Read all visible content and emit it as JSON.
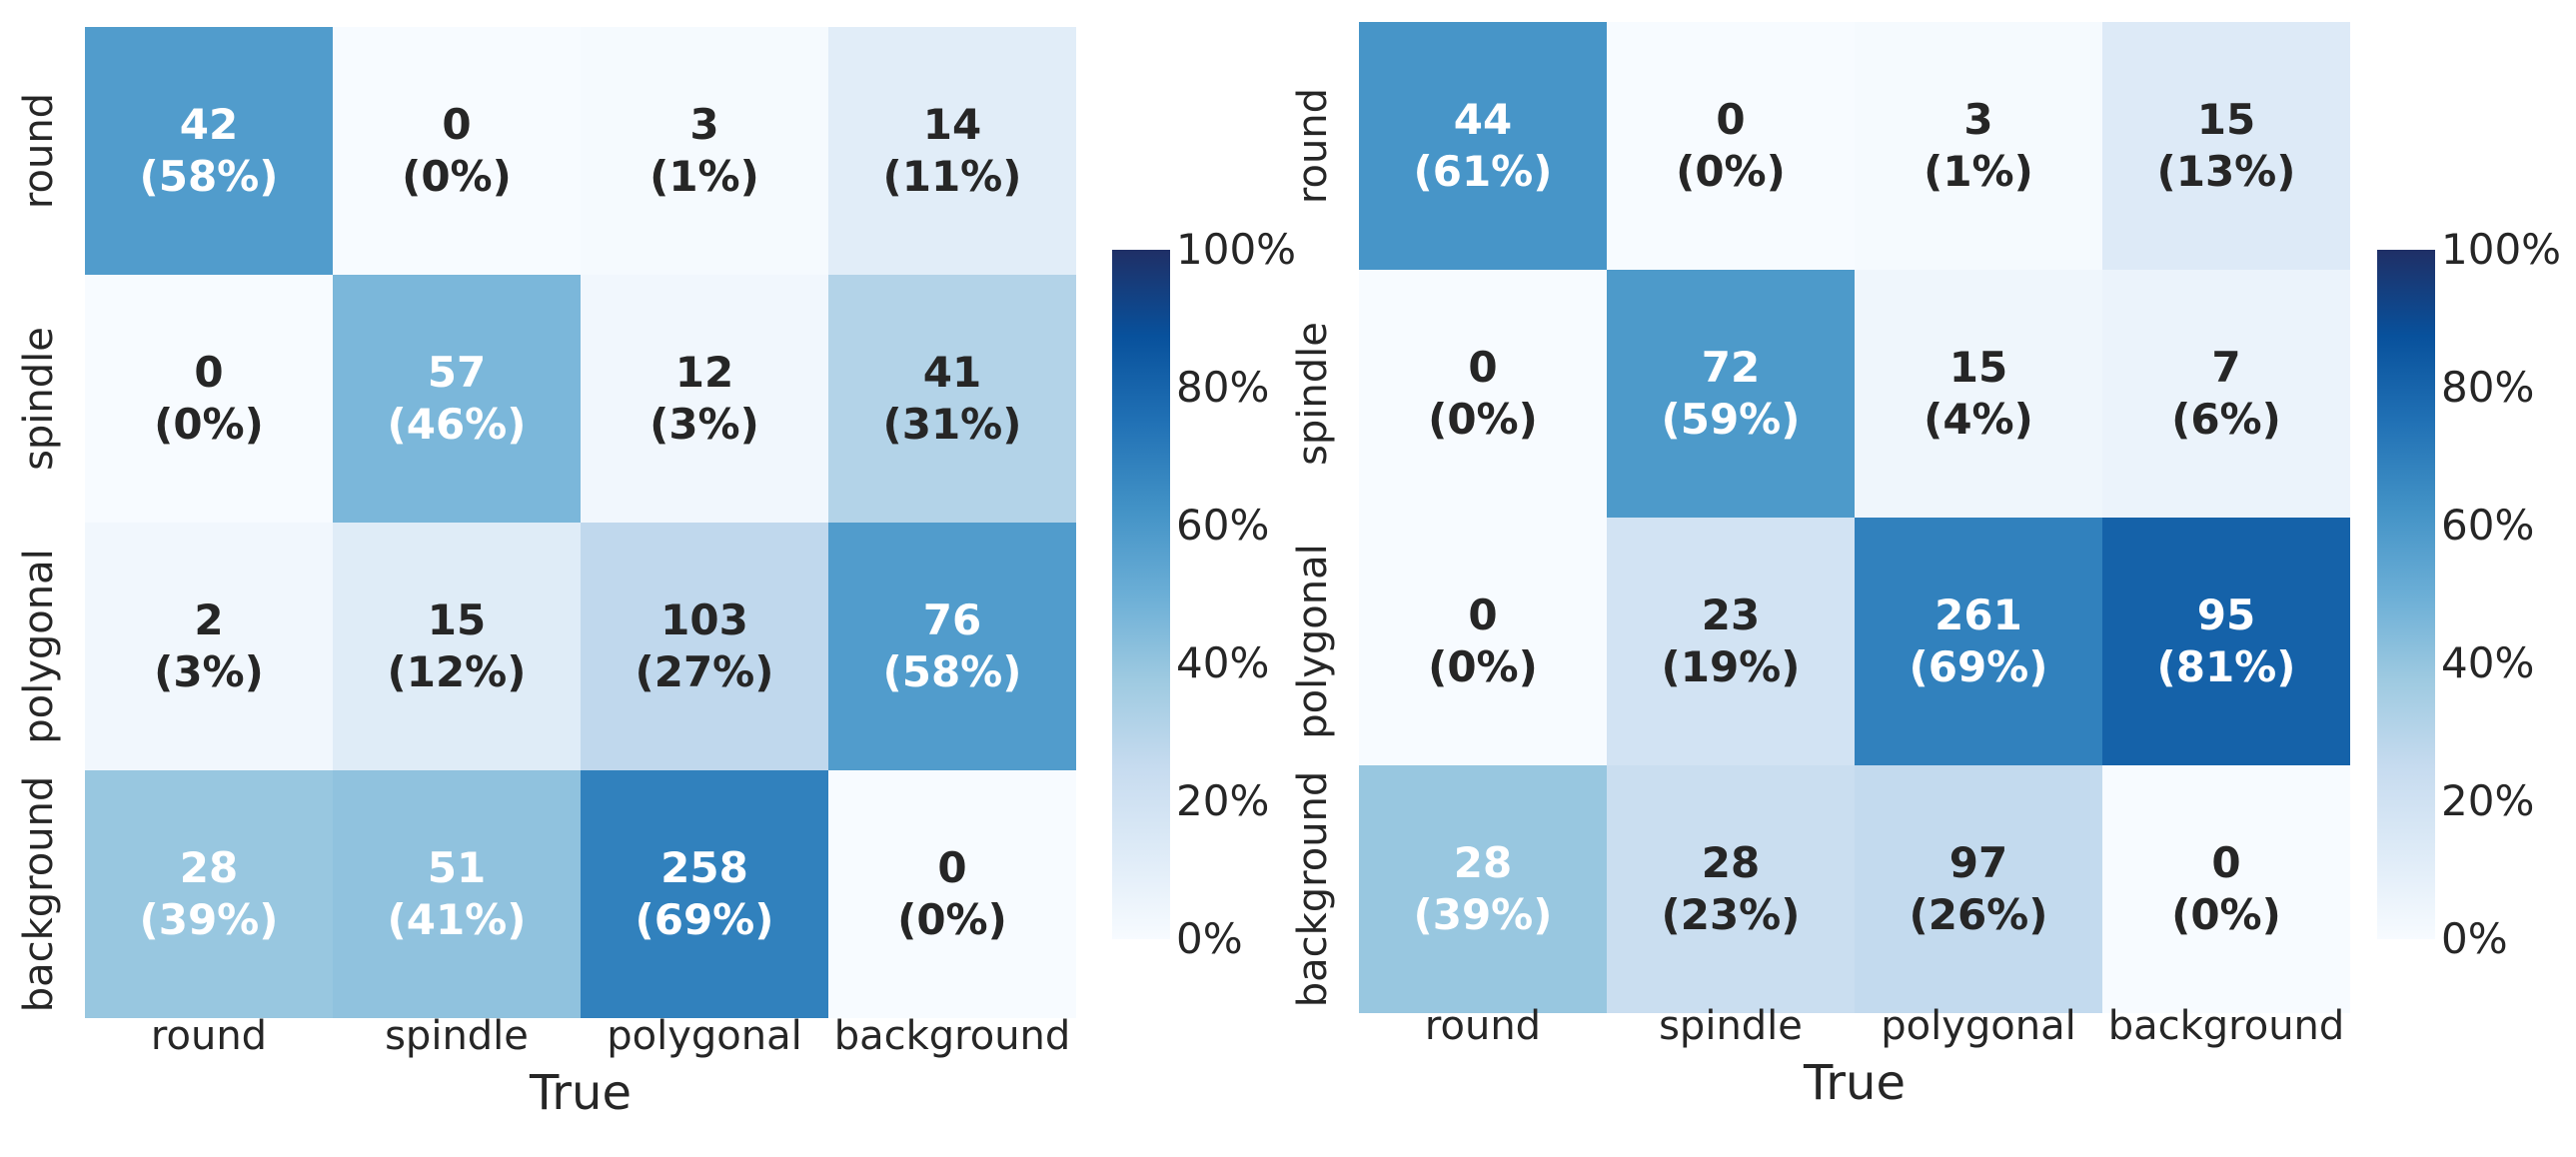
{
  "chart_data": [
    {
      "type": "heatmap",
      "title": "",
      "xlabel": "True",
      "ylabel": "",
      "x_categories": [
        "round",
        "spindle",
        "polygonal",
        "background"
      ],
      "y_categories": [
        "round",
        "spindle",
        "polygonal",
        "background"
      ],
      "counts": [
        [
          42,
          0,
          3,
          14
        ],
        [
          0,
          57,
          12,
          41
        ],
        [
          2,
          15,
          103,
          76
        ],
        [
          28,
          51,
          258,
          0
        ]
      ],
      "percent_labels": [
        [
          "(58%)",
          "(0%)",
          "(1%)",
          "(11%)"
        ],
        [
          "(0%)",
          "(46%)",
          "(3%)",
          "(31%)"
        ],
        [
          "(3%)",
          "(12%)",
          "(27%)",
          "(58%)"
        ],
        [
          "(39%)",
          "(41%)",
          "(69%)",
          "(0%)"
        ]
      ],
      "colorbar_ticks": [
        "0%",
        "20%",
        "40%",
        "60%",
        "80%",
        "100%"
      ],
      "colorbar_range": [
        0,
        100
      ],
      "colormap": "Blues"
    },
    {
      "type": "heatmap",
      "title": "",
      "xlabel": "True",
      "ylabel": "",
      "x_categories": [
        "round",
        "spindle",
        "polygonal",
        "background"
      ],
      "y_categories": [
        "round",
        "spindle",
        "polygonal",
        "background"
      ],
      "counts": [
        [
          44,
          0,
          3,
          15
        ],
        [
          0,
          72,
          15,
          7
        ],
        [
          0,
          23,
          261,
          95
        ],
        [
          28,
          28,
          97,
          0
        ]
      ],
      "percent_labels": [
        [
          "(61%)",
          "(0%)",
          "(1%)",
          "(13%)"
        ],
        [
          "(0%)",
          "(59%)",
          "(4%)",
          "(6%)"
        ],
        [
          "(0%)",
          "(19%)",
          "(69%)",
          "(81%)"
        ],
        [
          "(39%)",
          "(23%)",
          "(26%)",
          "(0%)"
        ]
      ],
      "colorbar_ticks": [
        "0%",
        "20%",
        "40%",
        "60%",
        "80%",
        "100%"
      ],
      "colorbar_range": [
        0,
        100
      ],
      "colormap": "Blues"
    }
  ]
}
